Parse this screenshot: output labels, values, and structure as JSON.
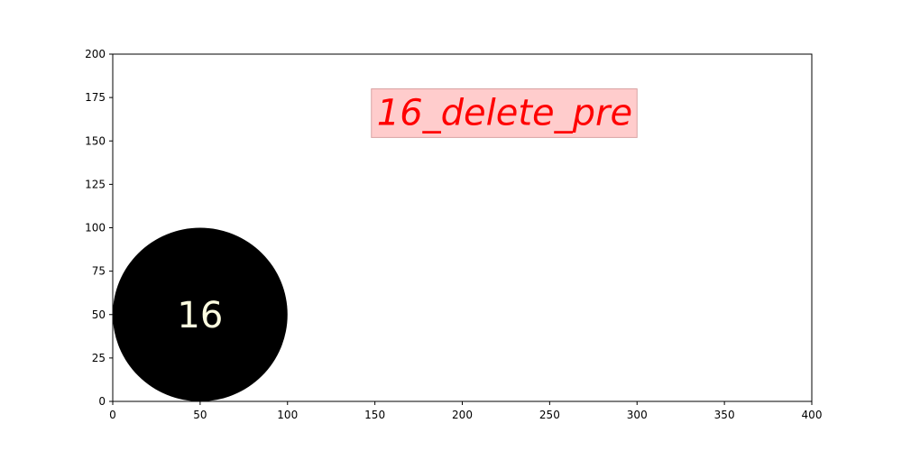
{
  "chart_data": {
    "type": "scatter",
    "title": "",
    "xlabel": "",
    "ylabel": "",
    "xlim": [
      0,
      400
    ],
    "ylim": [
      0,
      200
    ],
    "grid": false,
    "xticks": [
      0,
      50,
      100,
      150,
      200,
      250,
      300,
      350,
      400
    ],
    "yticks": [
      0,
      25,
      50,
      75,
      100,
      125,
      150,
      175,
      200
    ],
    "points": [
      {
        "x": 50,
        "y": 50,
        "radius": 50,
        "label": "16"
      }
    ],
    "annotation": {
      "text": "16_delete_pre",
      "x": 148,
      "y": 152,
      "x_end": 300,
      "y_end": 180
    },
    "colors": {
      "circle": "#000000",
      "circle_text": "#fdfde0",
      "annotation_text": "#ff0000",
      "annotation_box": "#ffcccc",
      "annotation_border": "#d9a3a3",
      "axis": "#000000"
    }
  }
}
